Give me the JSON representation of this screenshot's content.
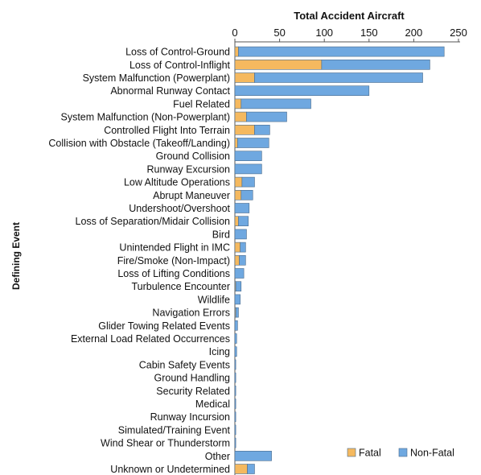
{
  "chart_data": {
    "type": "bar",
    "orientation": "horizontal",
    "stacked": true,
    "title": "Total Accident Aircraft",
    "xlabel": "Total Accident Aircraft",
    "ylabel": "Defining Event",
    "xlim": [
      0,
      250
    ],
    "xticks": [
      "0",
      "50",
      "100",
      "150",
      "200",
      "250"
    ],
    "grid": false,
    "legend_position": "bottom-right",
    "categories": [
      "Loss of Control-Ground",
      "Loss of Control-Inflight",
      "System Malfunction (Powerplant)",
      "Abnormal Runway Contact",
      "Fuel Related",
      "System Malfunction (Non-Powerplant)",
      "Controlled Flight Into Terrain",
      "Collision with Obstacle (Takeoff/Landing)",
      "Ground Collision",
      "Runway Excursion",
      "Low Altitude Operations",
      "Abrupt Maneuver",
      "Undershoot/Overshoot",
      "Loss of Separation/Midair Collision",
      "Bird",
      "Unintended Flight in IMC",
      "Fire/Smoke (Non-Impact)",
      "Loss of Lifting Conditions",
      "Turbulence Encounter",
      "Wildlife",
      "Navigation Errors",
      "Glider Towing Related Events",
      "External Load Related Occurrences",
      "Icing",
      "Cabin Safety Events",
      "Ground Handling",
      "Security Related",
      "Medical",
      "Runway Incursion",
      "Simulated/Training Event",
      "Wind Shear or Thunderstorm",
      "Other",
      "Unknown or Undetermined"
    ],
    "series": [
      {
        "name": "Fatal",
        "color": "#f5b95f",
        "values": [
          4,
          97,
          22,
          0,
          7,
          13,
          22,
          3,
          0,
          0,
          8,
          7,
          0,
          4,
          0,
          6,
          5,
          0,
          1,
          0,
          1,
          0,
          0,
          0,
          0,
          0,
          0,
          0,
          0,
          0,
          0,
          0,
          14
        ]
      },
      {
        "name": "Non-Fatal",
        "color": "#6fa8e0",
        "values": [
          230,
          121,
          188,
          150,
          78,
          45,
          17,
          35,
          30,
          30,
          14,
          13,
          16,
          11,
          13,
          6,
          7,
          10,
          6,
          6,
          3,
          3,
          2,
          2,
          1,
          1,
          1,
          1,
          1,
          1,
          1,
          41,
          8
        ]
      }
    ]
  }
}
